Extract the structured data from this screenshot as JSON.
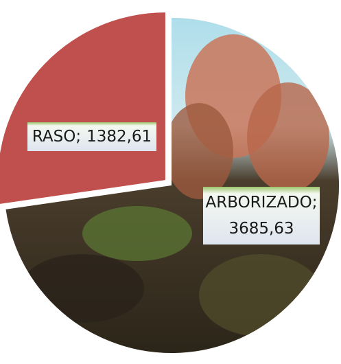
{
  "chart_data": {
    "type": "pie",
    "categories": [
      "RASO",
      "ARBORIZADO"
    ],
    "values": [
      1382.61,
      3685.63
    ],
    "value_labels": [
      "1382,61",
      "3685,63"
    ],
    "label_separator": ";",
    "colors": [
      "#c0504d",
      "#3b3022"
    ]
  }
}
